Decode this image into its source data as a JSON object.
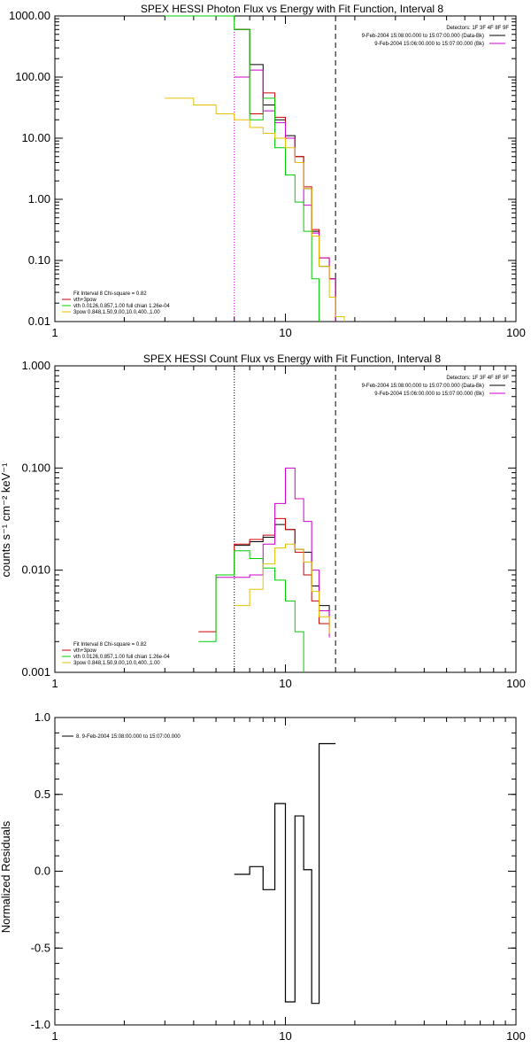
{
  "chart_data": [
    {
      "type": "line",
      "title": "SPEX HESSI Photon Flux vs Energy with Fit Function, Interval 8",
      "xlabel": "",
      "ylabel": "",
      "x_scale": "log",
      "y_scale": "log",
      "xlim": [
        1,
        100
      ],
      "ylim": [
        0.01,
        1000
      ],
      "x_ticks": [
        "1",
        "10",
        "100"
      ],
      "y_ticks": [
        "0.01",
        "0.10",
        "1.00",
        "10.00",
        "100.00",
        "1000.00"
      ],
      "detectors_label": "Detectors: 1F 3F 4F 8F 9F",
      "time_legend": [
        {
          "text": "9-Feb-2004 15:08:00.000 to 15:07:00.000 (Data-Bk)",
          "color": "#000000"
        },
        {
          "text": "9-Feb-2004 15:06:00.000 to 15:07:00.000 (Bk)",
          "color": "#cc00cc"
        }
      ],
      "fit_legend": [
        {
          "text": "Fit Interval 8   Chi-square = 0.82",
          "color": "#ffffff"
        },
        {
          "text": "vth+3pow",
          "color": "#cc0000"
        },
        {
          "text": "vth 0.0126,0.857,1.00  full chian 1.26e-04",
          "color": "#00cc00"
        },
        {
          "text": "3pow 0.848,1.50,9.00,10.0,400.,1.00",
          "color": "#e6c000"
        }
      ],
      "reference_lines": [
        {
          "x": 6,
          "style": "dotted",
          "color": "#cc00cc"
        },
        {
          "x": 16.5,
          "style": "dashed",
          "color": "#000000"
        }
      ],
      "series": [
        {
          "color": "#000000",
          "points": [
            [
              6,
              600
            ],
            [
              7,
              160
            ],
            [
              8,
              35
            ],
            [
              9,
              20
            ],
            [
              10,
              11
            ],
            [
              11,
              5
            ],
            [
              12,
              1.5
            ],
            [
              13,
              0.3
            ],
            [
              14,
              0.08
            ],
            [
              15.5,
              0.05
            ],
            [
              16.5,
              0.01
            ]
          ]
        },
        {
          "color": "#cc0000",
          "points": [
            [
              6,
              600
            ],
            [
              7,
              25
            ],
            [
              8,
              55
            ],
            [
              9,
              22
            ],
            [
              10,
              10
            ],
            [
              11,
              5
            ],
            [
              12,
              1.6
            ],
            [
              13,
              0.32
            ],
            [
              14,
              0.11
            ],
            [
              15.5,
              0.05
            ],
            [
              16.5,
              0.01
            ]
          ]
        },
        {
          "color": "#cc00cc",
          "points": [
            [
              6,
              100
            ],
            [
              7,
              130
            ],
            [
              8,
              28
            ],
            [
              9,
              18
            ],
            [
              10,
              10
            ],
            [
              11,
              4
            ],
            [
              12,
              0.8
            ],
            [
              13,
              0.28
            ],
            [
              14,
              0.11
            ],
            [
              15.5,
              0.05
            ],
            [
              16.5,
              0.01
            ]
          ]
        },
        {
          "color": "#00cc00",
          "points": [
            [
              3,
              1000
            ],
            [
              3.5,
              1000
            ],
            [
              4,
              1000
            ],
            [
              5,
              1000
            ],
            [
              6,
              600
            ],
            [
              7,
              20
            ],
            [
              8,
              45
            ],
            [
              9,
              7
            ],
            [
              10,
              2.5
            ],
            [
              11,
              0.9
            ],
            [
              12,
              0.3
            ],
            [
              13,
              0.05
            ],
            [
              14,
              0.01
            ]
          ]
        },
        {
          "color": "#e6c000",
          "points": [
            [
              3,
              45
            ],
            [
              4,
              35
            ],
            [
              5,
              25
            ],
            [
              6,
              20
            ],
            [
              7,
              15
            ],
            [
              8,
              12
            ],
            [
              9,
              10
            ],
            [
              10,
              7
            ],
            [
              11,
              4
            ],
            [
              12,
              1.5
            ],
            [
              13,
              0.25
            ],
            [
              14,
              0.08
            ],
            [
              15.5,
              0.025
            ],
            [
              16.5,
              0.012
            ],
            [
              18,
              0.01
            ]
          ]
        }
      ]
    },
    {
      "type": "line",
      "title": "SPEX HESSI Count Flux vs Energy with Fit Function, Interval 8",
      "xlabel": "",
      "ylabel": "counts s⁻¹ cm⁻² keV⁻¹",
      "x_scale": "log",
      "y_scale": "log",
      "xlim": [
        1,
        100
      ],
      "ylim": [
        0.001,
        1
      ],
      "x_ticks": [
        "1",
        "10",
        "100"
      ],
      "y_ticks": [
        "0.001",
        "0.010",
        "0.100",
        "1.000"
      ],
      "detectors_label": "Detectors: 1F 3F 4F 8F 9F",
      "time_legend": [
        {
          "text": "9-Feb-2004 15:08:00.000 to 15:07:00.000 (Data-Bk)",
          "color": "#000000"
        },
        {
          "text": "9-Feb-2004 15:06:00.000 to 15:07:00.000 (Bk)",
          "color": "#cc00cc"
        }
      ],
      "fit_legend": [
        {
          "text": "Fit Interval 8   Chi-square = 0.82",
          "color": "#ffffff"
        },
        {
          "text": "vth+3pow",
          "color": "#cc0000"
        },
        {
          "text": "vth 0.0126,0.857,1.00  full chian 1.26e-04",
          "color": "#00cc00"
        },
        {
          "text": "3pow 0.848,1.50,9.00,10.0,400.,1.00",
          "color": "#e6c000"
        }
      ],
      "reference_lines": [
        {
          "x": 6,
          "style": "dotted",
          "color": "#000000"
        },
        {
          "x": 16.5,
          "style": "dashed",
          "color": "#000000"
        }
      ],
      "series": [
        {
          "color": "#000000",
          "points": [
            [
              6,
              0.0175
            ],
            [
              7,
              0.019
            ],
            [
              8,
              0.021
            ],
            [
              9,
              0.028
            ],
            [
              10,
              0.025
            ],
            [
              11,
              0.016
            ],
            [
              12,
              0.015
            ],
            [
              13,
              0.007
            ],
            [
              14,
              0.0045
            ],
            [
              15.5,
              0.0028
            ]
          ]
        },
        {
          "color": "#cc0000",
          "points": [
            [
              4.2,
              0.0025
            ],
            [
              5,
              0.009
            ],
            [
              6,
              0.018
            ],
            [
              7,
              0.02
            ],
            [
              8,
              0.022
            ],
            [
              9,
              0.032
            ],
            [
              10,
              0.025
            ],
            [
              11,
              0.015
            ],
            [
              12,
              0.009
            ],
            [
              13,
              0.005
            ],
            [
              14,
              0.003
            ],
            [
              15.5,
              0.0026
            ]
          ]
        },
        {
          "color": "#cc00cc",
          "points": [
            [
              5,
              0.0085
            ],
            [
              6,
              0.0085
            ],
            [
              7,
              0.009
            ],
            [
              8,
              0.018
            ],
            [
              9,
              0.045
            ],
            [
              10,
              0.1
            ],
            [
              11,
              0.05
            ],
            [
              12,
              0.03
            ],
            [
              13,
              0.01
            ],
            [
              14,
              0.004
            ],
            [
              15.5,
              0.0022
            ]
          ]
        },
        {
          "color": "#00cc00",
          "points": [
            [
              4.2,
              0.002
            ],
            [
              5,
              0.009
            ],
            [
              6,
              0.0155
            ],
            [
              7,
              0.013
            ],
            [
              8,
              0.0105
            ],
            [
              9,
              0.008
            ],
            [
              10,
              0.005
            ],
            [
              11,
              0.0025
            ],
            [
              12,
              0.001
            ]
          ]
        },
        {
          "color": "#e6c000",
          "points": [
            [
              6,
              0.0045
            ],
            [
              7,
              0.0065
            ],
            [
              8,
              0.0115
            ],
            [
              9,
              0.0165
            ],
            [
              10,
              0.018
            ],
            [
              11,
              0.016
            ],
            [
              12,
              0.012
            ],
            [
              13,
              0.0062
            ],
            [
              14,
              0.0035
            ],
            [
              15.5,
              0.0024
            ]
          ]
        }
      ]
    },
    {
      "type": "line",
      "title": "",
      "xlabel": "",
      "ylabel": "Normalized Residuals",
      "x_scale": "log",
      "y_scale": "linear",
      "xlim": [
        1,
        100
      ],
      "ylim": [
        -1,
        1
      ],
      "x_ticks": [
        "1",
        "10",
        "100"
      ],
      "y_ticks": [
        "-1.0",
        "-0.5",
        "0.0",
        "0.5",
        "1.0"
      ],
      "legend": [
        {
          "text": "8.  9-Feb-2004 15:08:00.000 to 15:07:00.000",
          "color": "#000000"
        }
      ],
      "series": [
        {
          "color": "#000000",
          "points": [
            [
              6,
              -0.02
            ],
            [
              7,
              0.03
            ],
            [
              8,
              -0.12
            ],
            [
              9,
              0.44
            ],
            [
              10,
              -0.85
            ],
            [
              11,
              0.36
            ],
            [
              12,
              0.01
            ],
            [
              13,
              -0.86
            ],
            [
              14,
              0.83
            ],
            [
              16.5,
              0.83
            ]
          ]
        }
      ]
    }
  ]
}
